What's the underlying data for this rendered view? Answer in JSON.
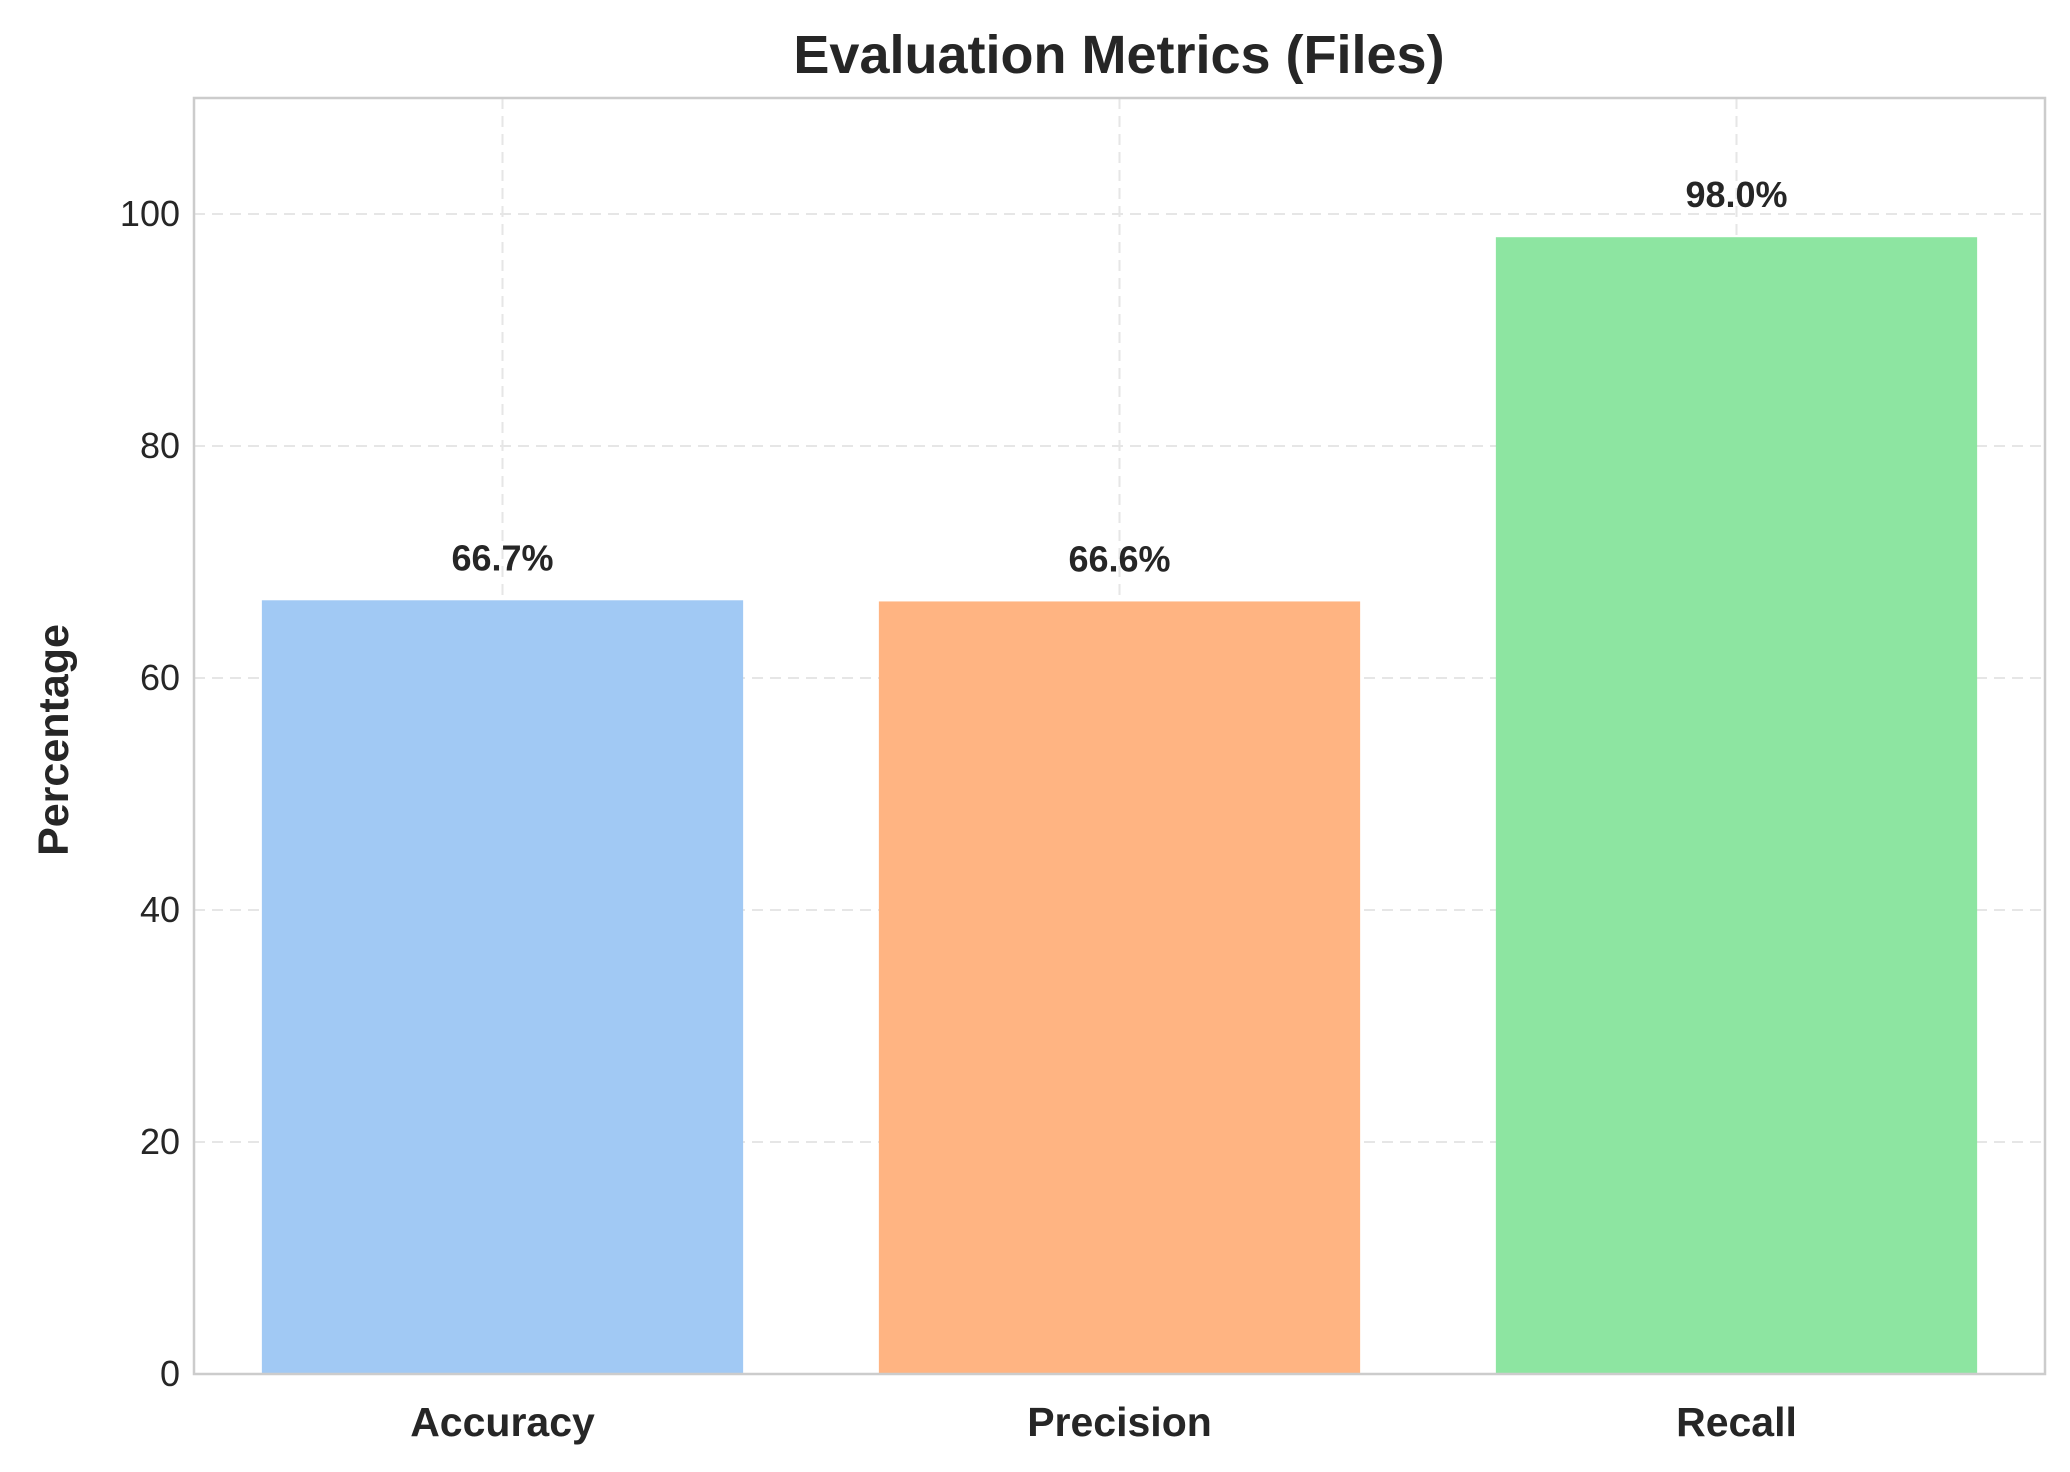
{
  "chart_data": {
    "type": "bar",
    "title": "Evaluation Metrics (Files)",
    "xlabel": "",
    "ylabel": "Percentage",
    "categories": [
      "Accuracy",
      "Precision",
      "Recall"
    ],
    "values": [
      66.7,
      66.6,
      98.0
    ],
    "value_labels": [
      "66.7%",
      "66.6%",
      "98.0%"
    ],
    "colors": [
      "#a1c9f4",
      "#ffb482",
      "#8de5a1"
    ],
    "ylim": [
      0,
      110
    ],
    "yticks": [
      0,
      20,
      40,
      60,
      80,
      100
    ],
    "grid": true
  }
}
